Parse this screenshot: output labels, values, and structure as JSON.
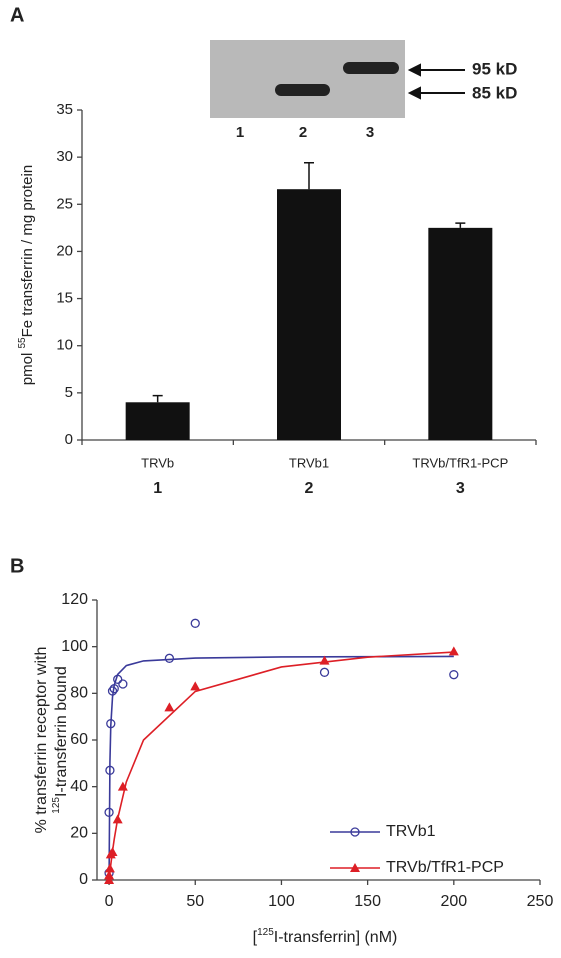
{
  "chart_data": [
    {
      "type": "bar",
      "panel": "A",
      "inset": {
        "lane_labels": [
          "1",
          "2",
          "3"
        ],
        "markers": [
          "95 kD",
          "85 kD"
        ]
      },
      "y_label": {
        "prefix": "pmol ",
        "sup": "55",
        "suffix": "Fe transferrin / mg protein"
      },
      "categories": [
        "TRVb",
        "TRVb1",
        "TRVb/TfR1-PCP"
      ],
      "category_numbers": [
        "1",
        "2",
        "3"
      ],
      "values": [
        4.0,
        26.6,
        22.5
      ],
      "errors": [
        0.7,
        2.8,
        0.5
      ],
      "color": "#111111",
      "ylim": [
        0,
        35
      ],
      "yticks": [
        0,
        5,
        10,
        15,
        20,
        25,
        30,
        35
      ]
    },
    {
      "type": "scatter",
      "panel": "B",
      "y_label": {
        "line1": "% transferrin receptor with",
        "sup": "125",
        "suffix": "I-transferrin bound"
      },
      "x_label": {
        "prefix": "[",
        "sup": "125",
        "suffix": "I-transferrin] (nM)"
      },
      "xlim": [
        -7,
        250
      ],
      "xticks": [
        0,
        50,
        100,
        150,
        200,
        250
      ],
      "ylim": [
        0,
        120
      ],
      "yticks": [
        0,
        20,
        40,
        60,
        80,
        100,
        120
      ],
      "legend": "lower right",
      "series": [
        {
          "name": "TRVb1",
          "color": "#3a3a9a",
          "marker": "open-circle",
          "x": [
            0,
            0,
            0.5,
            1,
            2,
            3,
            5,
            8,
            35,
            50,
            125,
            200
          ],
          "values": [
            3,
            29,
            47,
            67,
            81,
            82,
            86,
            84,
            95,
            110,
            89,
            88
          ],
          "fit_x": [
            0,
            0.5,
            1,
            2,
            3,
            5,
            10,
            20,
            50,
            100,
            150,
            200
          ],
          "fit": [
            0,
            50.5,
            66.2,
            78.4,
            83.5,
            88.1,
            91.9,
            93.9,
            95.1,
            95.6,
            95.7,
            95.8
          ]
        },
        {
          "name": "TRVb/TfR1-PCP",
          "color": "#dd1f26",
          "marker": "triangle",
          "x": [
            0,
            0,
            0.5,
            1,
            2,
            5,
            8,
            35,
            50,
            125,
            200
          ],
          "values": [
            0,
            2,
            5,
            11,
            12,
            26,
            40,
            74,
            83,
            94,
            98
          ],
          "fit_x": [
            0,
            0.5,
            1,
            2,
            3,
            5,
            10,
            20,
            50,
            100,
            150,
            200
          ],
          "fit": [
            0,
            3.4,
            6.6,
            12.4,
            17.5,
            26.3,
            42,
            60,
            80.8,
            91.3,
            95.5,
            97.7
          ]
        }
      ]
    }
  ]
}
